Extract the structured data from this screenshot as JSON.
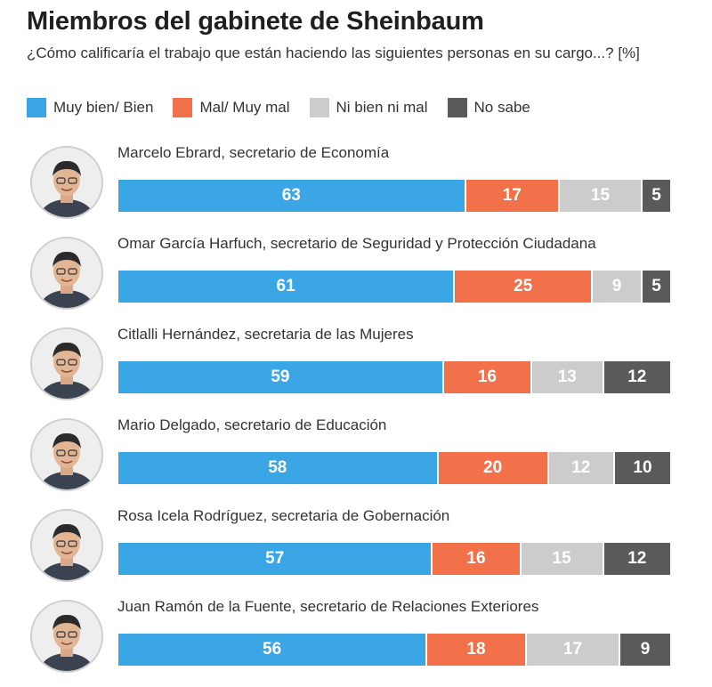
{
  "header": {
    "title": "Miembros del gabinete de Sheinbaum",
    "subtitle": "¿Cómo calificaría el trabajo que están haciendo las siguientes personas en su cargo...? [%]"
  },
  "legend": [
    {
      "label": "Muy bien/ Bien",
      "color": "#3aa6e6"
    },
    {
      "label": "Mal/ Muy mal",
      "color": "#f2704a"
    },
    {
      "label": "Ni bien ni mal",
      "color": "#cccccc"
    },
    {
      "label": "No sabe",
      "color": "#5a5a5a"
    }
  ],
  "chart_data": {
    "type": "bar",
    "orientation": "horizontal",
    "stacked": true,
    "title": "Miembros del gabinete de Sheinbaum",
    "subtitle": "¿Cómo calificaría el trabajo que están haciendo las siguientes personas en su cargo...? [%]",
    "categories": [
      "Marcelo Ebrard, secretario de Economía",
      "Omar García Harfuch, secretario de Seguridad y Protección Ciudadana",
      "Citlalli Hernández, secretaria de las Mujeres",
      "Mario Delgado, secretario de Educación",
      "Rosa Icela Rodríguez, secretaria de Gobernación",
      "Juan Ramón de la Fuente, secretario de Relaciones Exteriores"
    ],
    "series": [
      {
        "name": "Muy bien/ Bien",
        "color": "#3aa6e6",
        "values": [
          63,
          61,
          59,
          58,
          57,
          56
        ]
      },
      {
        "name": "Mal/ Muy mal",
        "color": "#f2704a",
        "values": [
          17,
          25,
          16,
          20,
          16,
          18
        ]
      },
      {
        "name": "Ni bien ni mal",
        "color": "#cccccc",
        "values": [
          15,
          9,
          13,
          12,
          15,
          17
        ]
      },
      {
        "name": "No sabe",
        "color": "#5a5a5a",
        "values": [
          5,
          5,
          12,
          10,
          12,
          9
        ]
      }
    ],
    "legend_position": "top",
    "grid": false
  }
}
